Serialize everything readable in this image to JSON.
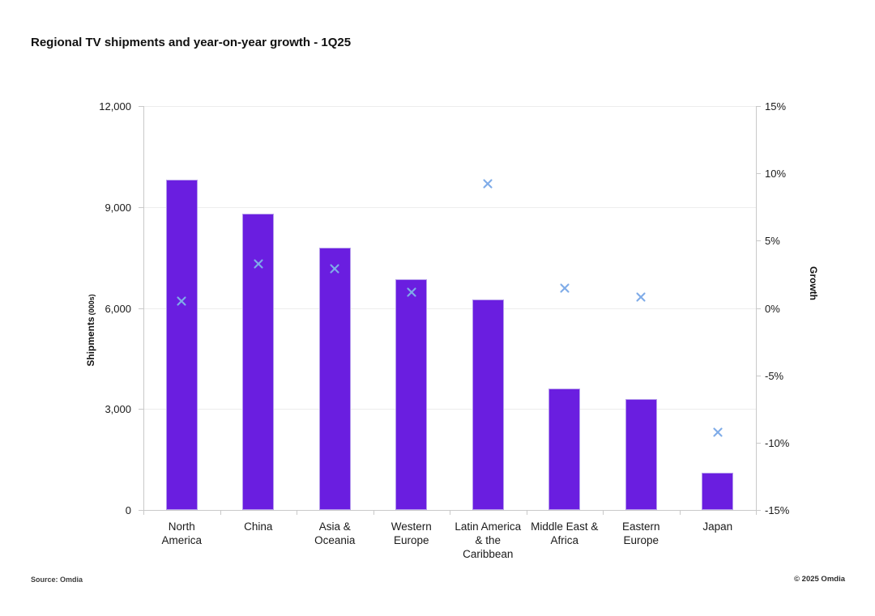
{
  "title": "Regional TV shipments and year-on-year growth - 1Q25",
  "left_axis": {
    "label": "Shipments",
    "label_unit": "(000s)",
    "min": 0,
    "max": 12000,
    "ticks": [
      {
        "label": "12,000",
        "value": 12000
      },
      {
        "label": "9,000",
        "value": 9000
      },
      {
        "label": "6,000",
        "value": 6000
      },
      {
        "label": "3,000",
        "value": 3000
      },
      {
        "label": "0",
        "value": 0
      }
    ]
  },
  "right_axis": {
    "label": "Growth",
    "min": -15,
    "max": 15,
    "ticks": [
      {
        "label": "15%",
        "value": 15
      },
      {
        "label": "10%",
        "value": 10
      },
      {
        "label": "5%",
        "value": 5
      },
      {
        "label": "0%",
        "value": 0
      },
      {
        "label": "-5%",
        "value": -5
      },
      {
        "label": "-10%",
        "value": -10
      },
      {
        "label": "-15%",
        "value": -15
      }
    ]
  },
  "footer": {
    "source": "Source: Omdia",
    "copyright": "© 2025 Omdia"
  },
  "colors": {
    "bar_fill": "#6A1EE0",
    "bar_border": "#B59CEC",
    "marker": "#7FACE8",
    "gridline": "#EDEDED",
    "axis_line": "#C9C9C9",
    "text": "#1A1A1A"
  },
  "chart_data": {
    "type": "combo",
    "title": "Regional TV shipments and year-on-year growth - 1Q25",
    "categories": [
      "North America",
      "China",
      "Asia & Oceania",
      "Western Europe",
      "Latin America & the Caribbean",
      "Middle East & Africa",
      "Eastern Europe",
      "Japan"
    ],
    "category_labels_wrapped": [
      "North\nAmerica",
      "China",
      "Asia &\nOceania",
      "Western\nEurope",
      "Latin America\n& the\nCaribbean",
      "Middle East &\nAfrica",
      "Eastern\nEurope",
      "Japan"
    ],
    "series": [
      {
        "name": "Shipments (000s)",
        "type": "bar",
        "axis": "left",
        "values": [
          9800,
          8800,
          7800,
          6850,
          6250,
          3600,
          3300,
          1100
        ]
      },
      {
        "name": "Year-on-year growth",
        "type": "scatter",
        "marker": "x",
        "axis": "right",
        "values": [
          0.5,
          3.3,
          2.9,
          1.2,
          9.2,
          1.5,
          0.8,
          -9.2
        ]
      }
    ],
    "xlabel": "",
    "ylabel_left": "Shipments (000s)",
    "ylabel_right": "Growth",
    "ylim_left": [
      0,
      12000
    ],
    "ylim_right": [
      -15,
      15
    ],
    "grid": "horizontal",
    "legend": "none"
  }
}
